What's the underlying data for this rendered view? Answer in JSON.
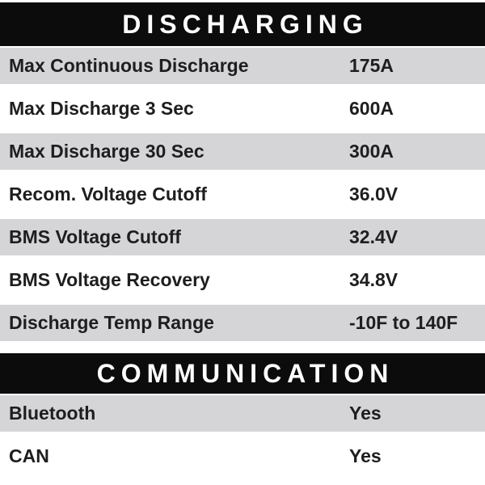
{
  "colors": {
    "header_bg": "#0c0c0c",
    "header_text": "#ffffff",
    "stripe_bg": "#d5d5d7",
    "row_text": "#1e1e20",
    "page_bg": "#ffffff"
  },
  "sections": [
    {
      "title": "DISCHARGING",
      "rows": [
        {
          "label": "Max Continuous Discharge",
          "value": "175A"
        },
        {
          "label": "Max Discharge 3 Sec",
          "value": "600A"
        },
        {
          "label": "Max Discharge 30 Sec",
          "value": "300A"
        },
        {
          "label": "Recom. Voltage Cutoff",
          "value": "36.0V"
        },
        {
          "label": "BMS Voltage Cutoff",
          "value": "32.4V"
        },
        {
          "label": "BMS Voltage Recovery",
          "value": "34.8V"
        },
        {
          "label": "Discharge Temp Range",
          "value": "-10F to 140F"
        }
      ]
    },
    {
      "title": "COMMUNICATION",
      "rows": [
        {
          "label": "Bluetooth",
          "value": "Yes"
        },
        {
          "label": "CAN",
          "value": "Yes"
        }
      ]
    }
  ]
}
